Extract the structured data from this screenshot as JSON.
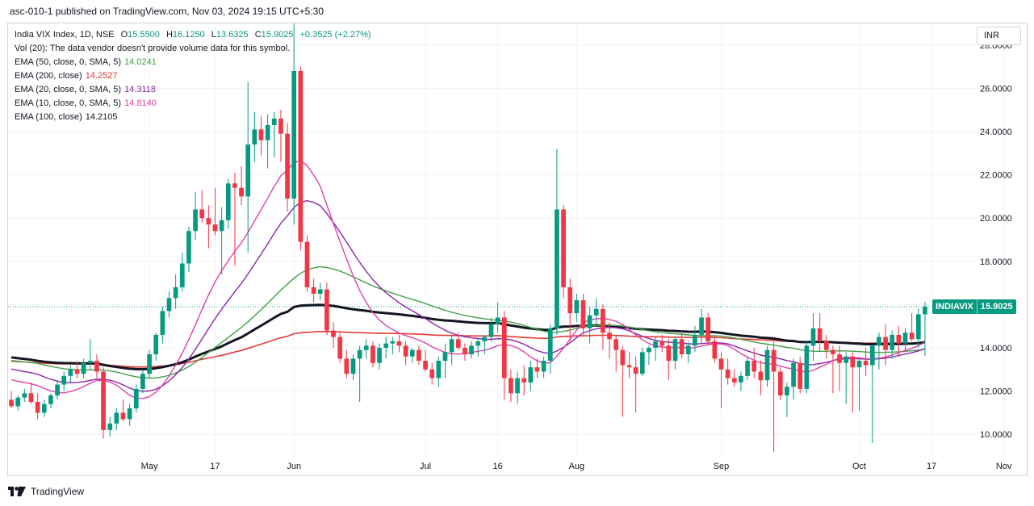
{
  "header": {
    "published_text": "asc-010-1 published on TradingView.com, Nov 03, 2024 19:15 UTC+5:30"
  },
  "legend": {
    "symbol_line": "India VIX Index, 1D, NSE",
    "ohlc": [
      {
        "label": "O",
        "value": "15.5500"
      },
      {
        "label": "H",
        "value": "16.1250"
      },
      {
        "label": "L",
        "value": "13.6325"
      },
      {
        "label": "C",
        "value": "15.9025"
      }
    ],
    "change": "+0.3525 (+2.27%)",
    "volume_note": "Vol (20): The data vendor doesn't provide volume data for this symbol.",
    "indicators": [
      {
        "label": "EMA (50, close, 0, SMA, 5)",
        "value": "14.0241",
        "color": "#43a047"
      },
      {
        "label": "EMA (200, close)",
        "value": "14.2527",
        "color": "#e53935"
      },
      {
        "label": "EMA (20, close, 0, SMA, 5)",
        "value": "14.3118",
        "color": "#8e24aa"
      },
      {
        "label": "EMA (10, close, 0, SMA, 5)",
        "value": "14.8140",
        "color": "#e040aa"
      },
      {
        "label": "EMA (100, close)",
        "value": "14.2105",
        "color": "#131722"
      }
    ]
  },
  "currency_button": "INR",
  "price_tag": {
    "symbol": "INDIAVIX",
    "value": "15.9025"
  },
  "footer": {
    "brand": "TradingView"
  },
  "colors": {
    "up": "#089981",
    "down": "#f23645",
    "grid": "#f0f3fa",
    "axis_text": "#131722"
  },
  "chart_data": {
    "type": "candlestick",
    "y_axis": {
      "min": 9.0,
      "max": 29.0,
      "ticks": [
        "10.0000",
        "12.0000",
        "14.0000",
        "16.0000",
        "18.0000",
        "20.0000",
        "22.0000",
        "24.0000",
        "26.0000",
        "28.0000"
      ]
    },
    "x_axis": {
      "ticks": [
        {
          "label": "May",
          "index": 21
        },
        {
          "label": "17",
          "index": 31
        },
        {
          "label": "Jun",
          "index": 43
        },
        {
          "label": "Jul",
          "index": 63
        },
        {
          "label": "16",
          "index": 74
        },
        {
          "label": "Aug",
          "index": 86
        },
        {
          "label": "Sep",
          "index": 108
        },
        {
          "label": "Oct",
          "index": 129
        },
        {
          "label": "17",
          "index": 140
        },
        {
          "label": "Nov",
          "index": 151
        }
      ]
    },
    "last_price": 15.9025,
    "candles": [
      [
        11.6,
        12.0,
        11.2,
        11.3
      ],
      [
        11.3,
        11.8,
        11.1,
        11.7
      ],
      [
        11.7,
        12.1,
        11.5,
        11.9
      ],
      [
        11.9,
        12.4,
        11.4,
        11.5
      ],
      [
        11.5,
        11.9,
        10.7,
        11.0
      ],
      [
        11.0,
        11.6,
        10.8,
        11.4
      ],
      [
        11.4,
        11.9,
        11.2,
        11.8
      ],
      [
        11.8,
        12.5,
        11.6,
        12.3
      ],
      [
        12.3,
        12.9,
        12.0,
        12.7
      ],
      [
        12.7,
        13.2,
        12.4,
        13.0
      ],
      [
        13.0,
        13.4,
        12.6,
        12.8
      ],
      [
        12.8,
        13.5,
        12.6,
        13.3
      ],
      [
        13.3,
        14.4,
        13.0,
        13.4
      ],
      [
        13.4,
        13.7,
        12.6,
        12.9
      ],
      [
        12.9,
        13.1,
        9.8,
        10.2
      ],
      [
        10.2,
        10.8,
        9.9,
        10.5
      ],
      [
        10.5,
        11.2,
        10.2,
        11.0
      ],
      [
        11.0,
        11.6,
        10.6,
        10.7
      ],
      [
        10.7,
        11.4,
        10.4,
        11.2
      ],
      [
        11.2,
        12.3,
        11.0,
        12.1
      ],
      [
        12.1,
        13.0,
        11.9,
        12.8
      ],
      [
        12.8,
        13.9,
        12.6,
        13.7
      ],
      [
        13.7,
        14.7,
        13.4,
        14.6
      ],
      [
        14.6,
        15.9,
        14.2,
        15.7
      ],
      [
        15.7,
        16.6,
        15.4,
        16.3
      ],
      [
        16.3,
        17.4,
        15.8,
        16.8
      ],
      [
        16.8,
        18.4,
        16.6,
        17.9
      ],
      [
        17.9,
        19.6,
        17.5,
        19.4
      ],
      [
        19.4,
        21.2,
        19.0,
        20.4
      ],
      [
        20.4,
        21.3,
        19.8,
        20.0
      ],
      [
        20.0,
        20.6,
        18.6,
        19.7
      ],
      [
        19.7,
        21.4,
        19.2,
        19.4
      ],
      [
        19.4,
        20.5,
        17.4,
        19.9
      ],
      [
        19.9,
        21.8,
        19.5,
        21.6
      ],
      [
        21.6,
        22.1,
        17.8,
        21.4
      ],
      [
        21.4,
        22.4,
        20.6,
        21.0
      ],
      [
        21.0,
        26.3,
        18.4,
        23.4
      ],
      [
        23.4,
        24.9,
        22.6,
        24.1
      ],
      [
        24.1,
        24.7,
        22.9,
        23.6
      ],
      [
        23.6,
        24.8,
        22.3,
        24.3
      ],
      [
        24.3,
        24.9,
        22.8,
        24.6
      ],
      [
        24.6,
        25.0,
        22.6,
        23.9
      ],
      [
        23.9,
        24.4,
        20.3,
        20.9
      ],
      [
        20.9,
        29.0,
        19.7,
        26.8
      ],
      [
        26.8,
        27.0,
        18.5,
        18.9
      ],
      [
        18.9,
        19.2,
        16.6,
        16.8
      ],
      [
        16.8,
        17.2,
        16.1,
        16.5
      ],
      [
        16.5,
        17.0,
        16.2,
        16.7
      ],
      [
        16.7,
        17.0,
        14.6,
        14.8
      ],
      [
        14.8,
        15.2,
        14.0,
        14.5
      ],
      [
        14.5,
        14.7,
        13.3,
        13.5
      ],
      [
        13.5,
        13.9,
        12.6,
        12.8
      ],
      [
        12.8,
        13.7,
        12.5,
        13.5
      ],
      [
        13.5,
        14.1,
        11.5,
        13.9
      ],
      [
        13.9,
        14.4,
        13.5,
        14.1
      ],
      [
        14.1,
        14.3,
        13.1,
        13.3
      ],
      [
        13.3,
        14.2,
        13.0,
        14.0
      ],
      [
        14.0,
        14.5,
        13.5,
        14.2
      ],
      [
        14.2,
        14.5,
        13.7,
        14.3
      ],
      [
        14.3,
        14.6,
        13.8,
        14.1
      ],
      [
        14.1,
        14.3,
        13.2,
        13.6
      ],
      [
        13.6,
        14.0,
        13.3,
        13.9
      ],
      [
        13.9,
        14.1,
        13.2,
        13.4
      ],
      [
        13.4,
        13.9,
        12.9,
        13.0
      ],
      [
        13.0,
        13.3,
        12.3,
        12.6
      ],
      [
        12.6,
        13.6,
        12.2,
        13.4
      ],
      [
        13.4,
        14.2,
        12.6,
        13.8
      ],
      [
        13.8,
        14.6,
        13.2,
        14.4
      ],
      [
        14.4,
        14.7,
        13.9,
        14.0
      ],
      [
        14.0,
        14.2,
        13.4,
        13.7
      ],
      [
        13.7,
        14.3,
        13.5,
        14.1
      ],
      [
        14.1,
        14.4,
        13.6,
        14.3
      ],
      [
        14.3,
        14.6,
        13.7,
        14.5
      ],
      [
        14.5,
        15.4,
        14.3,
        15.1
      ],
      [
        15.1,
        16.1,
        14.7,
        15.4
      ],
      [
        15.4,
        15.7,
        11.6,
        12.6
      ],
      [
        12.6,
        13.0,
        11.5,
        11.9
      ],
      [
        11.9,
        12.9,
        11.4,
        12.6
      ],
      [
        12.6,
        13.2,
        11.8,
        12.4
      ],
      [
        12.4,
        13.4,
        12.0,
        13.1
      ],
      [
        13.1,
        13.5,
        12.6,
        12.9
      ],
      [
        12.9,
        13.6,
        12.6,
        13.4
      ],
      [
        13.4,
        15.1,
        12.8,
        14.9
      ],
      [
        14.9,
        23.2,
        14.6,
        20.4
      ],
      [
        20.4,
        20.6,
        16.3,
        16.8
      ],
      [
        16.8,
        17.2,
        14.3,
        15.6
      ],
      [
        15.6,
        16.5,
        15.2,
        16.2
      ],
      [
        16.2,
        16.5,
        14.6,
        14.9
      ],
      [
        14.9,
        15.9,
        14.2,
        15.5
      ],
      [
        15.5,
        16.3,
        15.1,
        15.8
      ],
      [
        15.8,
        16.0,
        13.9,
        14.7
      ],
      [
        14.7,
        15.2,
        13.5,
        14.4
      ],
      [
        14.4,
        14.6,
        12.9,
        13.9
      ],
      [
        13.9,
        14.1,
        10.8,
        13.2
      ],
      [
        13.2,
        13.8,
        12.6,
        13.1
      ],
      [
        13.1,
        13.6,
        11.0,
        12.8
      ],
      [
        12.8,
        14.0,
        12.7,
        13.8
      ],
      [
        13.8,
        14.1,
        13.2,
        14.0
      ],
      [
        14.0,
        14.5,
        13.4,
        14.3
      ],
      [
        14.3,
        14.6,
        13.8,
        14.1
      ],
      [
        14.1,
        14.4,
        12.5,
        13.4
      ],
      [
        13.4,
        14.5,
        13.0,
        14.4
      ],
      [
        14.4,
        14.8,
        13.5,
        13.7
      ],
      [
        13.7,
        14.3,
        13.3,
        14.1
      ],
      [
        14.1,
        15.0,
        13.8,
        14.6
      ],
      [
        14.6,
        15.8,
        14.2,
        15.4
      ],
      [
        15.4,
        15.6,
        14.1,
        14.3
      ],
      [
        14.3,
        14.6,
        13.3,
        13.5
      ],
      [
        13.5,
        13.8,
        11.2,
        13.0
      ],
      [
        13.0,
        13.5,
        12.3,
        12.6
      ],
      [
        12.6,
        13.0,
        12.2,
        12.4
      ],
      [
        12.4,
        12.9,
        12.0,
        12.7
      ],
      [
        12.7,
        13.6,
        12.5,
        13.4
      ],
      [
        13.4,
        14.0,
        12.6,
        12.9
      ],
      [
        12.9,
        13.4,
        11.8,
        12.5
      ],
      [
        12.5,
        14.1,
        12.2,
        13.9
      ],
      [
        13.9,
        14.3,
        9.2,
        12.9
      ],
      [
        12.9,
        13.1,
        11.6,
        11.8
      ],
      [
        11.8,
        12.4,
        10.8,
        12.2
      ],
      [
        12.2,
        13.5,
        11.6,
        13.3
      ],
      [
        13.3,
        13.6,
        11.9,
        12.1
      ],
      [
        12.1,
        14.3,
        11.9,
        14.1
      ],
      [
        14.1,
        15.6,
        13.4,
        14.9
      ],
      [
        14.9,
        15.6,
        13.8,
        14.3
      ],
      [
        14.3,
        14.6,
        13.5,
        13.9
      ],
      [
        13.9,
        14.1,
        11.9,
        13.7
      ],
      [
        13.7,
        14.1,
        12.0,
        13.3
      ],
      [
        13.3,
        13.8,
        11.4,
        13.6
      ],
      [
        13.6,
        13.8,
        11.0,
        13.1
      ],
      [
        13.1,
        13.5,
        11.1,
        13.4
      ],
      [
        13.4,
        14.0,
        12.7,
        13.2
      ],
      [
        13.2,
        14.1,
        9.6,
        14.1
      ],
      [
        14.1,
        14.7,
        13.0,
        14.5
      ],
      [
        14.5,
        15.1,
        13.2,
        13.9
      ],
      [
        13.9,
        14.8,
        13.5,
        14.6
      ],
      [
        14.6,
        15.0,
        13.6,
        14.2
      ],
      [
        14.2,
        14.9,
        13.9,
        14.7
      ],
      [
        14.7,
        15.6,
        14.3,
        14.4
      ],
      [
        14.4,
        15.8,
        14.0,
        15.55
      ],
      [
        15.55,
        16.125,
        13.6325,
        15.9025
      ]
    ]
  }
}
